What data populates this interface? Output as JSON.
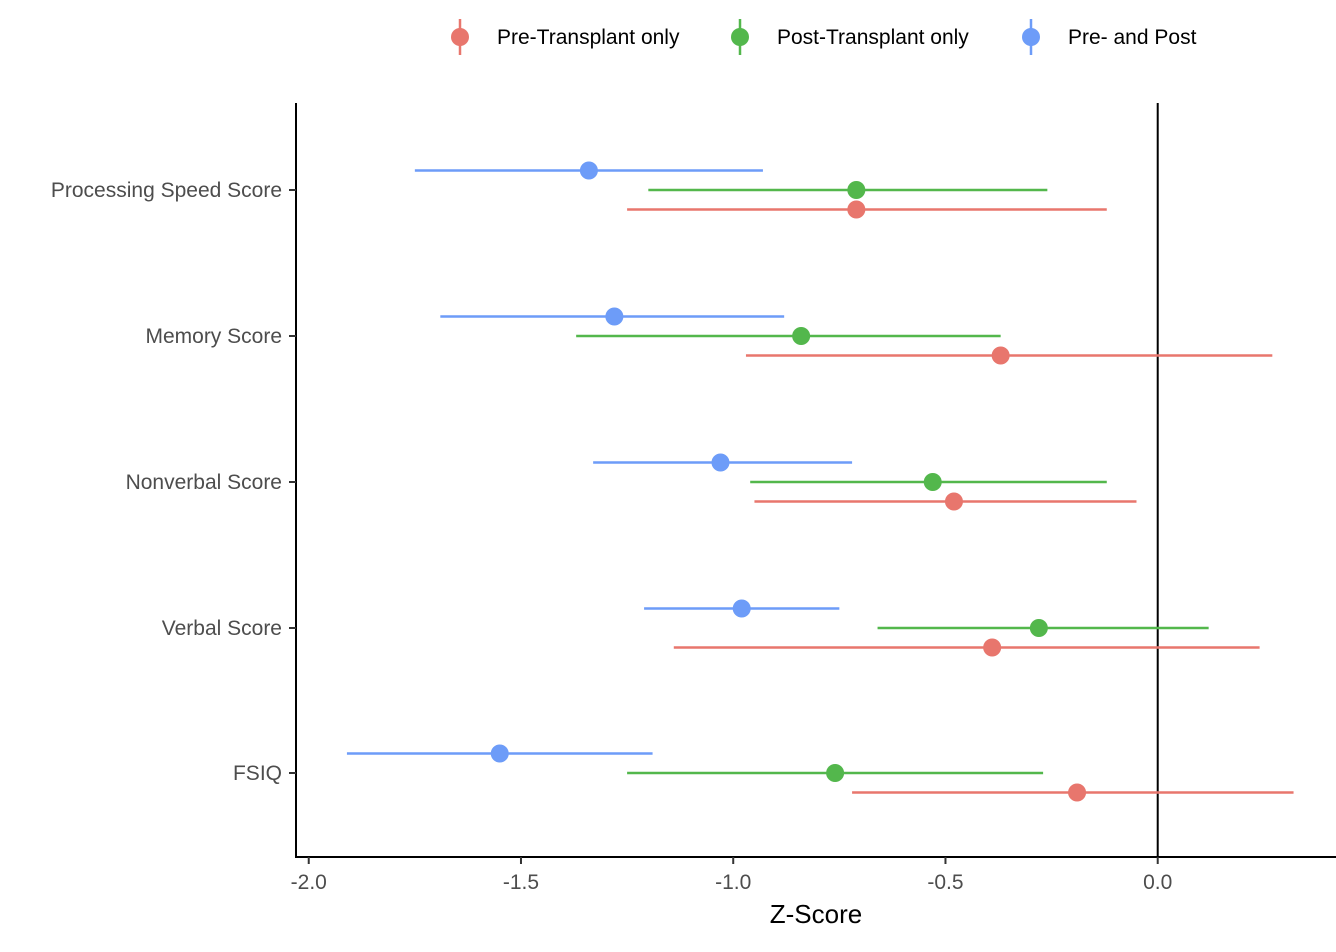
{
  "chart_data": {
    "type": "scatter",
    "subtype": "point-range (horizontal error bars)",
    "title": "",
    "xlabel": "Z-Score",
    "ylabel": "",
    "xlim": [
      -2.03,
      0.42
    ],
    "x_ticks": [
      -2.0,
      -1.5,
      -1.0,
      -0.5,
      0.0
    ],
    "x_tick_labels": [
      "-2.0",
      "-1.5",
      "-1.0",
      "-0.5",
      "0.0"
    ],
    "reference_line_x": 0.0,
    "grid": false,
    "legend_position": "top",
    "categories": [
      "Processing Speed Score",
      "Memory Score",
      "Nonverbal Score",
      "Verbal Score",
      "FSIQ"
    ],
    "series": [
      {
        "name": "Pre-Transplant only",
        "color": "#E8766D",
        "estimates": [
          -0.71,
          -0.37,
          -0.48,
          -0.39,
          -0.19
        ],
        "lower": [
          -1.25,
          -0.97,
          -0.95,
          -1.14,
          -0.72
        ],
        "upper": [
          -0.12,
          0.27,
          -0.05,
          0.24,
          0.32
        ]
      },
      {
        "name": "Post-Transplant only",
        "color": "#53B74C",
        "estimates": [
          -0.71,
          -0.84,
          -0.53,
          -0.28,
          -0.76
        ],
        "lower": [
          -1.2,
          -1.37,
          -0.96,
          -0.66,
          -1.25
        ],
        "upper": [
          -0.26,
          -0.37,
          -0.12,
          0.12,
          -0.27
        ]
      },
      {
        "name": "Pre- and Post",
        "color": "#6D9CF8",
        "estimates": [
          -1.34,
          -1.28,
          -1.03,
          -0.98,
          -1.55
        ],
        "lower": [
          -1.75,
          -1.69,
          -1.33,
          -1.21,
          -1.91
        ],
        "upper": [
          -0.93,
          -0.88,
          -0.72,
          -0.75,
          -1.19
        ]
      }
    ]
  }
}
